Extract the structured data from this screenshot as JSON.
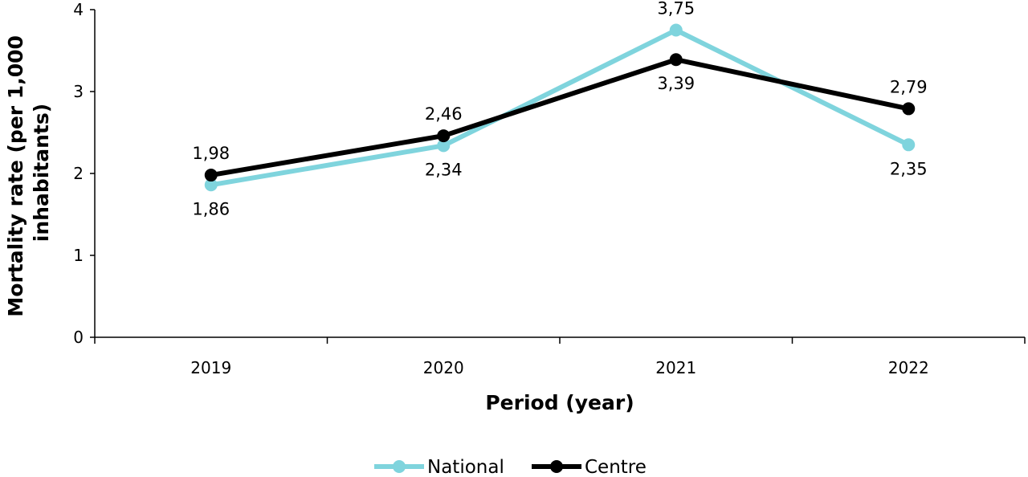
{
  "chart_data": {
    "type": "line",
    "categories": [
      "2019",
      "2020",
      "2021",
      "2022"
    ],
    "series": [
      {
        "name": "National",
        "color": "#7fd4dd",
        "values": [
          1.86,
          2.34,
          3.75,
          2.35
        ],
        "labels": [
          "1,86",
          "2,34",
          "3,75",
          "2,35"
        ],
        "label_positions": [
          "below",
          "below",
          "above",
          "below"
        ]
      },
      {
        "name": "Centre",
        "color": "#000000",
        "values": [
          1.98,
          2.46,
          3.39,
          2.79
        ],
        "labels": [
          "1,98",
          "2,46",
          "3,39",
          "2,79"
        ],
        "label_positions": [
          "above",
          "above",
          "below",
          "above"
        ]
      }
    ],
    "xlabel": "Period (year)",
    "ylabel": "Mortality rate (per 1,000 inhabitants)",
    "ylim": [
      0,
      4
    ],
    "yticks": [
      0,
      1,
      2,
      3,
      4
    ],
    "grid": false,
    "legend": "bottom-center"
  }
}
